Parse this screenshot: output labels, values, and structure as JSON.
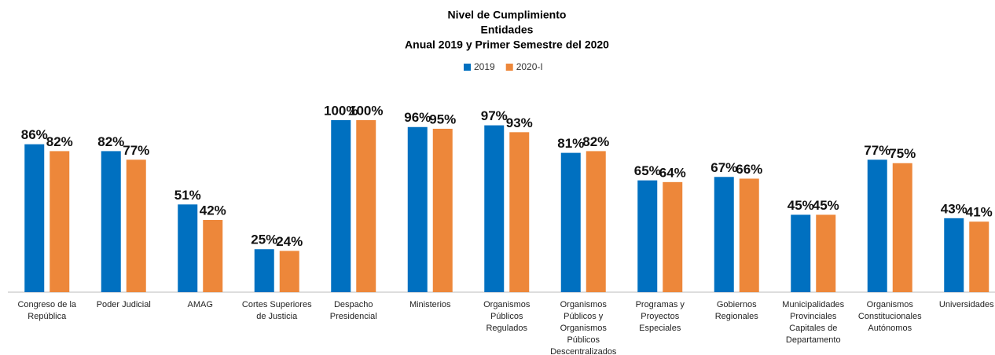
{
  "chart_data": {
    "type": "bar",
    "title": [
      "Nivel de Cumplimiento",
      "Entidades",
      "Anual 2019 y Primer Semestre del 2020"
    ],
    "categories": [
      "Congreso de la República",
      "Poder Judicial",
      "AMAG",
      "Cortes Superiores de Justicia",
      "Despacho Presidencial",
      "Ministerios",
      "Organismos Públicos Regulados",
      "Organismos Públicos y Organismos Públicos Descentralizados",
      "Programas y Proyectos Especiales",
      "Gobiernos Regionales",
      "Municipalidades Provinciales Capitales de Departamento",
      "Organismos Constitucionales Autónomos",
      "Universidades"
    ],
    "series": [
      {
        "name": "2019",
        "color": "#0070c0",
        "values": [
          86,
          82,
          51,
          25,
          100,
          96,
          97,
          81,
          65,
          67,
          45,
          77,
          43
        ],
        "value_labels": [
          "86%",
          "82%",
          "51%",
          "25%",
          "100%",
          "96%",
          "97%",
          "81%",
          "65%",
          "67%",
          "45%",
          "77%",
          "43%"
        ]
      },
      {
        "name": "2020-I",
        "color": "#ed873a",
        "values": [
          82,
          77,
          42,
          24,
          100,
          95,
          93,
          82,
          64,
          66,
          45,
          75,
          41
        ],
        "value_labels": [
          "82%",
          "77%",
          "42%",
          "24%",
          "100%",
          "95%",
          "93%",
          "82%",
          "64%",
          "66%",
          "45%",
          "75%",
          "41%"
        ]
      }
    ],
    "legend": "top"
  }
}
